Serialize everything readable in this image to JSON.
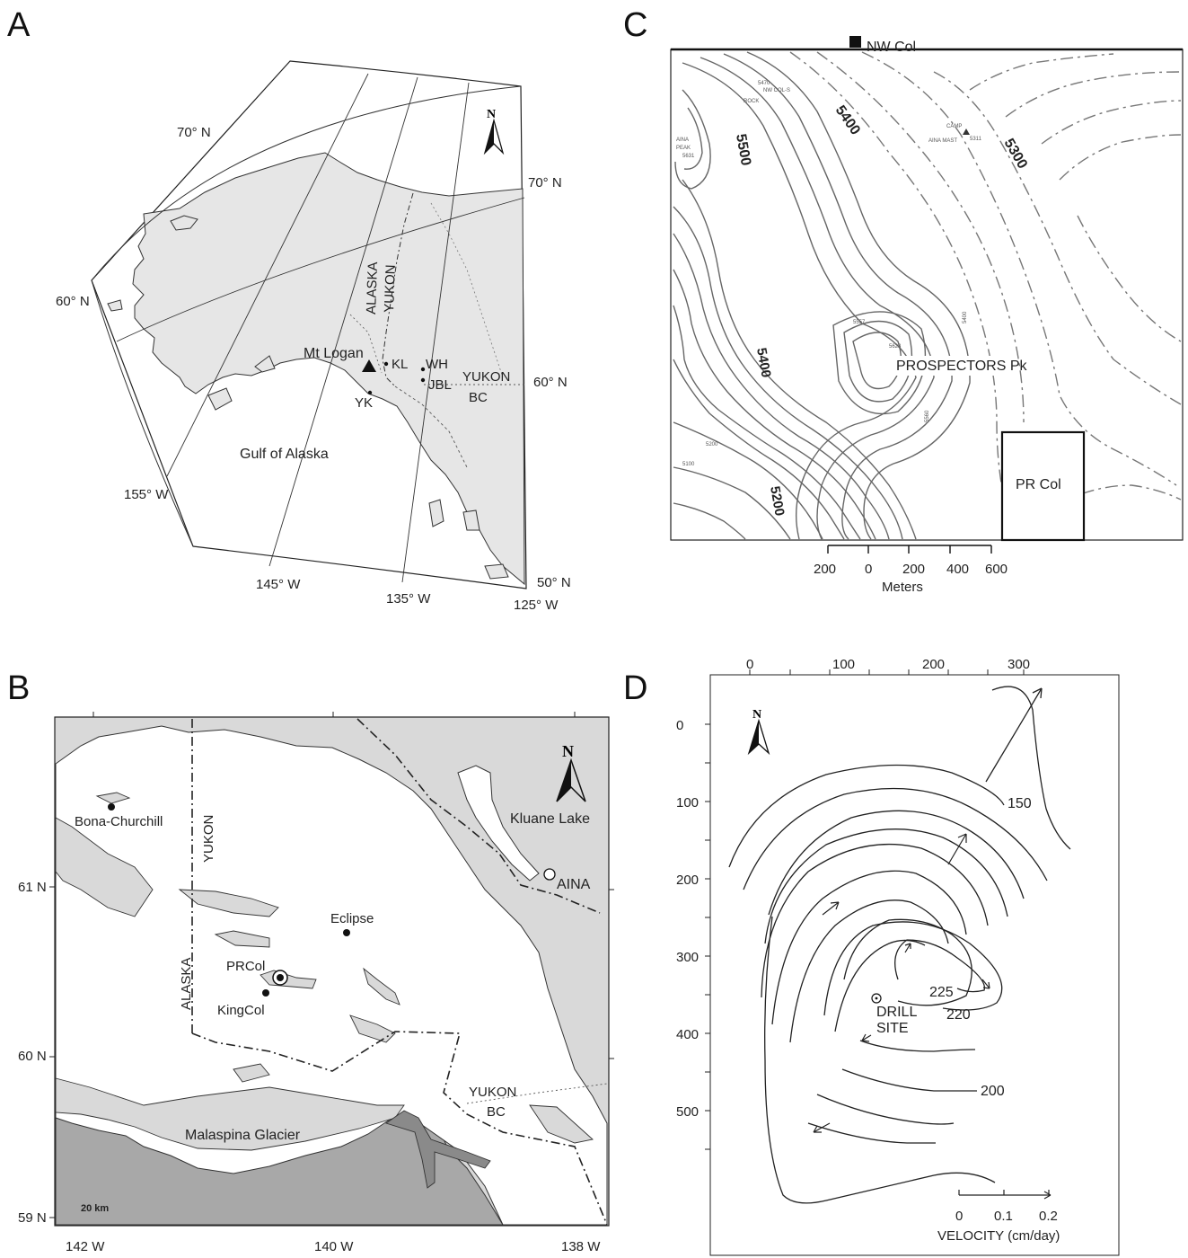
{
  "panels": {
    "a": {
      "letter": "A",
      "lat_labels": [
        "70° N",
        "60° N",
        "70° N",
        "60° N",
        "50° N"
      ],
      "lon_labels": [
        "155° W",
        "145° W",
        "135° W",
        "125° W"
      ],
      "border_alaska": "ALASKA",
      "border_yukon": "YUKON",
      "mt_logan": "Mt Logan",
      "kl": "KL",
      "wh": "WH",
      "jbl": "JBL",
      "yk": "YK",
      "yukon": "YUKON",
      "bc": "BC",
      "gulf": "Gulf   of   Alaska",
      "north": "N"
    },
    "b": {
      "letter": "B",
      "lat_labels": [
        "61 N",
        "60 N",
        "59 N"
      ],
      "lon_labels": [
        "142 W",
        "140 W",
        "138 W"
      ],
      "places": {
        "bona": "Bona-Churchill",
        "kluane": "Kluane Lake",
        "aina": "AINA",
        "eclipse": "Eclipse",
        "prcol": "PRCol",
        "kingcol": "KingCol",
        "malaspina": "Malaspina Glacier",
        "yukon_v": "YUKON",
        "alaska_v": "ALASKA",
        "yukon": "YUKON",
        "bc": "BC"
      },
      "scale": "20 km",
      "north": "N"
    },
    "c": {
      "letter": "C",
      "nw_col": "NW Col",
      "contour_labels": [
        "5500",
        "5400",
        "5300",
        "5400",
        "5200"
      ],
      "prospectors": "PROSPECTORS Pk",
      "pr_col": "PR Col",
      "small_labels": [
        "5470",
        "NW COL-S",
        "ROCK",
        "AINA",
        "PEAK",
        "5631",
        "CAMP",
        "AINA MAST",
        "5311",
        "5557",
        "5623",
        "5100",
        "5200",
        "5400",
        "5560"
      ],
      "scale_ticks": [
        "200",
        "0",
        "200",
        "400",
        "600"
      ],
      "scale_unit": "Meters"
    },
    "d": {
      "letter": "D",
      "top_ticks": [
        "0",
        "100",
        "200",
        "300"
      ],
      "left_ticks": [
        "0",
        "100",
        "200",
        "300",
        "400",
        "500"
      ],
      "contour_labels": [
        "150",
        "225",
        "220",
        "200"
      ],
      "drill_site": [
        "DRILL",
        "SITE"
      ],
      "velocity_ticks": [
        "0",
        "0.1",
        "0.2"
      ],
      "velocity_label": "VELOCITY (cm/day)",
      "north": "N"
    }
  },
  "colors": {
    "land": "#e6e6e6",
    "land_b": "#d9d9d9",
    "sea_b": "#a8a8a8",
    "contour": "#666666"
  }
}
